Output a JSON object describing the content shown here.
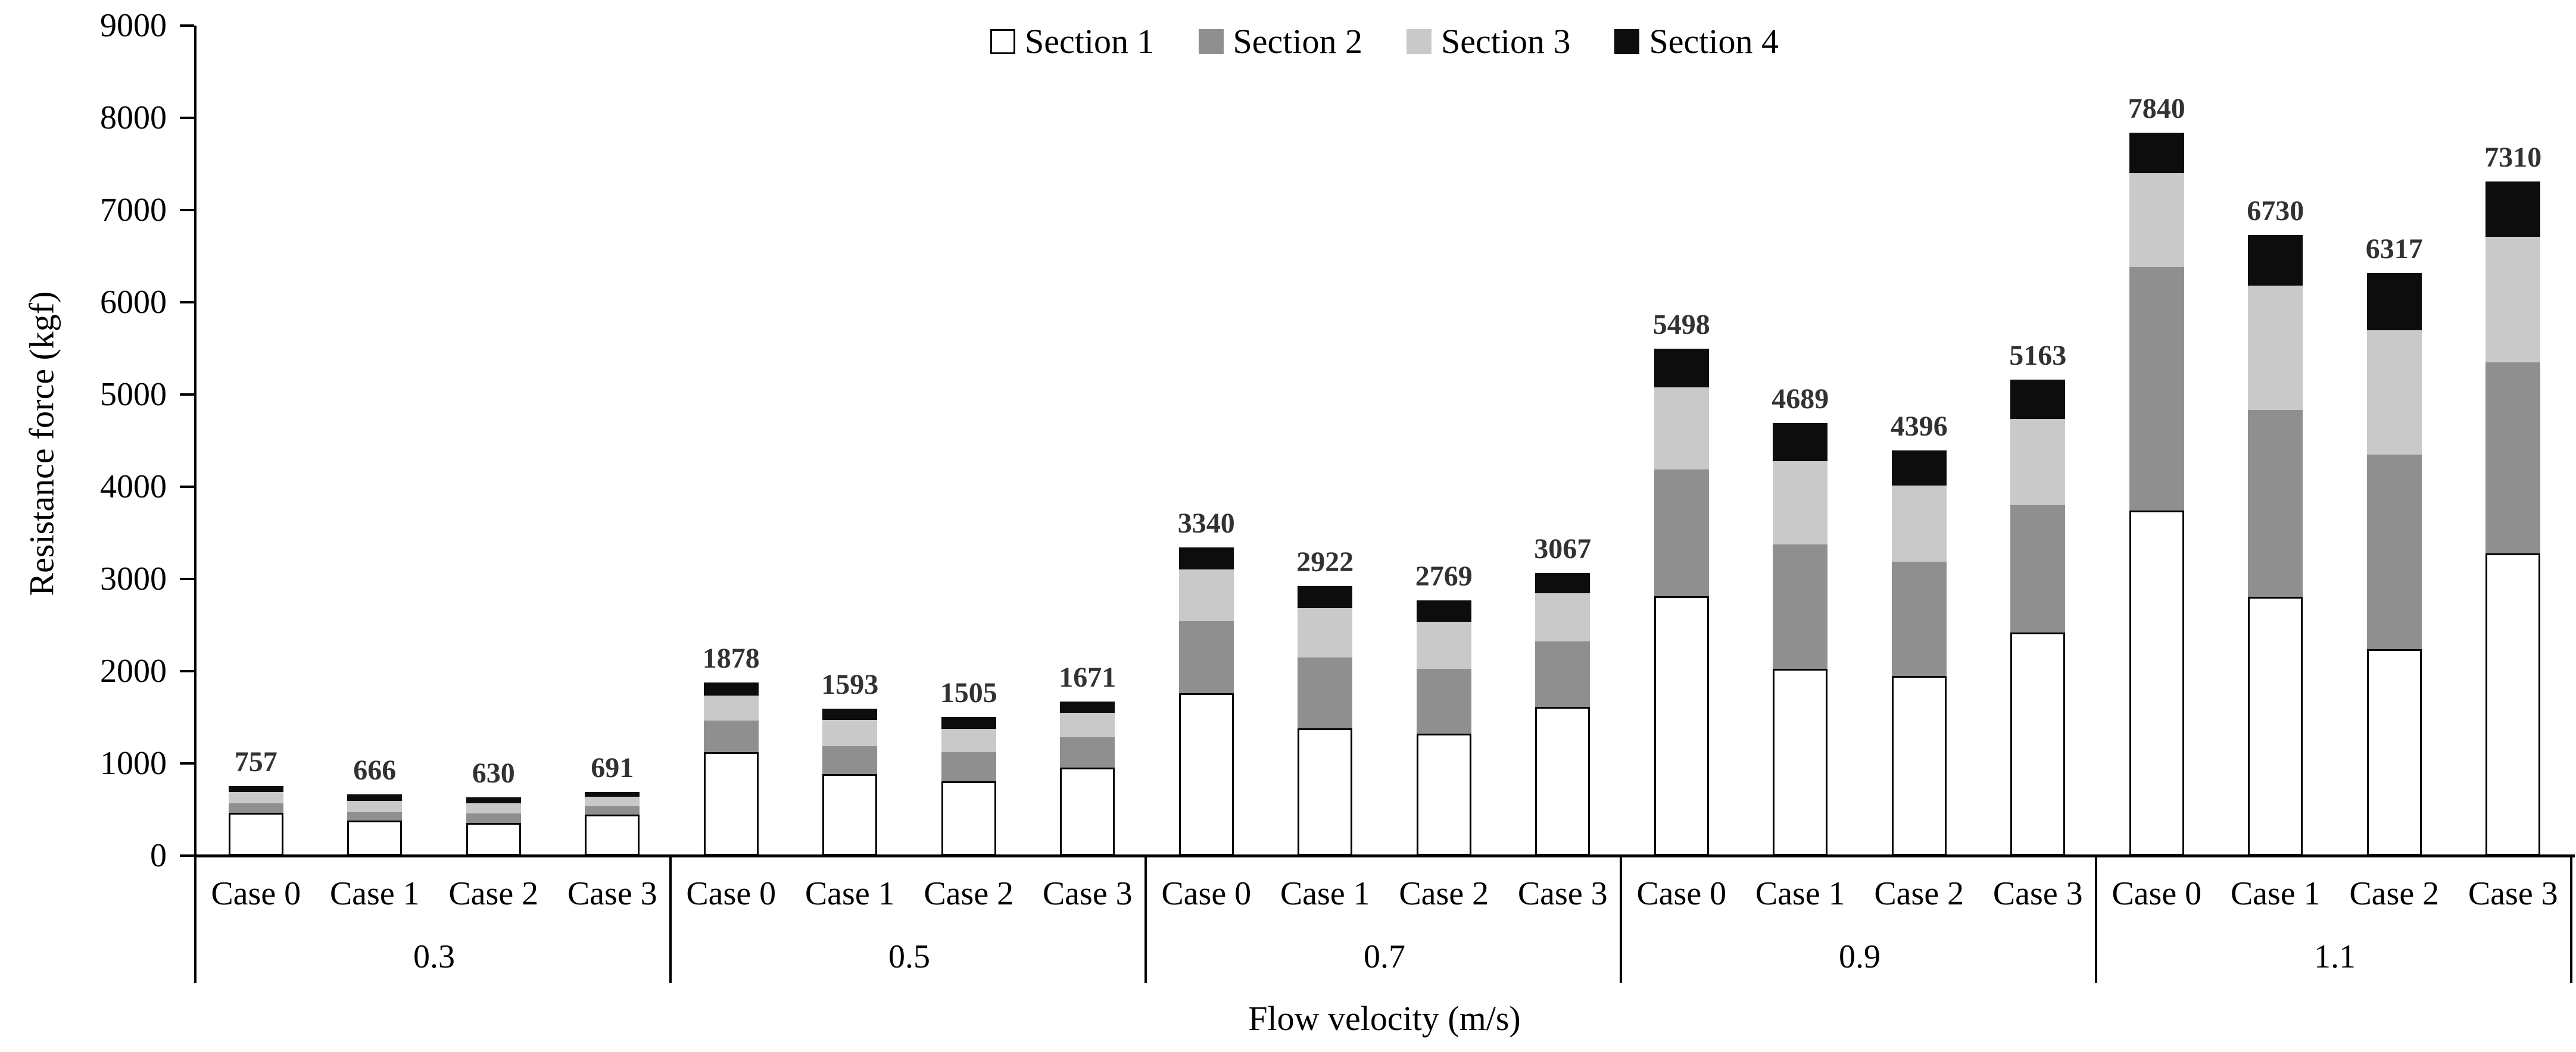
{
  "chart_data": {
    "type": "bar",
    "stacked": true,
    "title": "",
    "xlabel": "Flow velocity (m/s)",
    "ylabel": "Resistance force (kgf)",
    "ylim": [
      0,
      9000
    ],
    "ytick_step": 1000,
    "y_tick_labels": [
      "0",
      "1000",
      "2000",
      "3000",
      "4000",
      "5000",
      "6000",
      "7000",
      "8000",
      "9000"
    ],
    "grid": false,
    "legend_position": "top",
    "series": [
      {
        "name": "Section 1",
        "color": "#ffffff"
      },
      {
        "name": "Section 2",
        "color": "#8f8f8f"
      },
      {
        "name": "Section 3",
        "color": "#c9c9c9"
      },
      {
        "name": "Section 4",
        "color": "#0d0d0d"
      }
    ],
    "case_labels": [
      "Case 0",
      "Case 1",
      "Case 2",
      "Case 3"
    ],
    "groups": [
      {
        "velocity": "0.3",
        "bars": [
          {
            "case": "Case 0",
            "total": 757,
            "sections": [
              463,
              104,
              121,
              69
            ]
          },
          {
            "case": "Case 1",
            "total": 666,
            "sections": [
              379,
              94,
              123,
              70
            ]
          },
          {
            "case": "Case 2",
            "total": 630,
            "sections": [
              356,
              103,
              108,
              63
            ]
          },
          {
            "case": "Case 3",
            "total": 691,
            "sections": [
              442,
              93,
              104,
              52
            ]
          }
        ]
      },
      {
        "velocity": "0.5",
        "bars": [
          {
            "case": "Case 0",
            "total": 1878,
            "sections": [
              1124,
              339,
              273,
              142
            ]
          },
          {
            "case": "Case 1",
            "total": 1593,
            "sections": [
              884,
              305,
              284,
              120
            ]
          },
          {
            "case": "Case 2",
            "total": 1505,
            "sections": [
              807,
              316,
              251,
              131
            ]
          },
          {
            "case": "Case 3",
            "total": 1671,
            "sections": [
              956,
              330,
              264,
              121
            ]
          }
        ]
      },
      {
        "velocity": "0.7",
        "bars": [
          {
            "case": "Case 0",
            "total": 3340,
            "sections": [
              1762,
              780,
              562,
              236
            ]
          },
          {
            "case": "Case 1",
            "total": 2922,
            "sections": [
              1380,
              771,
              532,
              239
            ]
          },
          {
            "case": "Case 2",
            "total": 2769,
            "sections": [
              1322,
              706,
              505,
              236
            ]
          },
          {
            "case": "Case 3",
            "total": 3067,
            "sections": [
              1614,
              709,
              524,
              220
            ]
          }
        ]
      },
      {
        "velocity": "0.9",
        "bars": [
          {
            "case": "Case 0",
            "total": 5498,
            "sections": [
              2813,
              1375,
              889,
              421
            ]
          },
          {
            "case": "Case 1",
            "total": 4689,
            "sections": [
              2025,
              1347,
              907,
              410
            ]
          },
          {
            "case": "Case 2",
            "total": 4396,
            "sections": [
              1948,
              1238,
              825,
              385
            ]
          },
          {
            "case": "Case 3",
            "total": 5163,
            "sections": [
              2421,
              1379,
              938,
              425
            ]
          }
        ]
      },
      {
        "velocity": "1.1",
        "bars": [
          {
            "case": "Case 0",
            "total": 7840,
            "sections": [
              3740,
              2640,
              1022,
              438
            ]
          },
          {
            "case": "Case 1",
            "total": 6730,
            "sections": [
              2807,
              2025,
              1351,
              547
            ]
          },
          {
            "case": "Case 2",
            "total": 6317,
            "sections": [
              2240,
              2108,
              1347,
              622
            ]
          },
          {
            "case": "Case 3",
            "total": 7310,
            "sections": [
              3275,
              2075,
              1361,
              599
            ]
          }
        ]
      }
    ],
    "colors": {
      "axis": "#000000",
      "total_label": "#323232",
      "section1_border": "#000000"
    }
  }
}
